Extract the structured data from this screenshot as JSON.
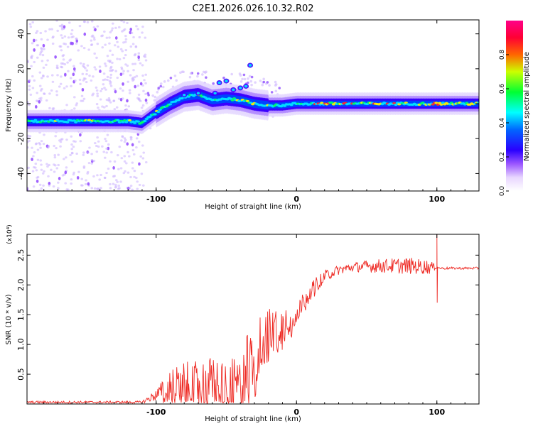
{
  "title": "C2E1.2026.026.10.32.R02",
  "chart_data": [
    {
      "type": "heatmap",
      "xlabel": "Height of straight line (km)",
      "ylabel": "Frequency (Hz)",
      "xlim": [
        -192,
        130
      ],
      "ylim": [
        -50,
        48
      ],
      "x_ticks": [
        -100,
        0,
        100
      ],
      "y_ticks": [
        -40,
        -20,
        0,
        20,
        40
      ],
      "grid": false,
      "colorbar": {
        "label": "Normalized spectral amplitude",
        "range": [
          0.0,
          1.0
        ],
        "ticks": [
          0.0,
          0.2,
          0.4,
          0.6,
          0.8
        ],
        "colors": [
          "#ffffff",
          "#cc99ff",
          "#6600ff",
          "#0000ff",
          "#00ffff",
          "#00ff00",
          "#ffff00",
          "#ff0000",
          "#ff0088"
        ]
      },
      "ridge": {
        "x": [
          -192,
          -150,
          -120,
          -110,
          -100,
          -90,
          -80,
          -70,
          -60,
          -50,
          -40,
          -30,
          -20,
          -10,
          0,
          10,
          20,
          50,
          90,
          100,
          130
        ],
        "freq": [
          -10,
          -10,
          -10,
          -11,
          -5,
          0,
          4,
          5,
          2,
          3,
          2,
          0,
          -1,
          -1,
          0,
          0,
          0,
          0,
          0,
          0,
          0
        ]
      }
    },
    {
      "type": "line",
      "xlabel": "Height of straight line (km)",
      "ylabel": "SNR (10 * v/v)",
      "y_multiplier": "(x10⁴)",
      "xlim": [
        -192,
        130
      ],
      "ylim": [
        0,
        2.85
      ],
      "x_ticks": [
        -100,
        0,
        100
      ],
      "y_ticks": [
        0.5,
        1.0,
        1.5,
        2.0,
        2.5
      ],
      "y_tick_labels": [
        "0.5",
        "1.0",
        "1.5",
        "2.0",
        "2.5"
      ],
      "grid": false,
      "color": "#ee2a24",
      "envelope": {
        "x": [
          -192,
          -110,
          -100,
          -90,
          -80,
          -70,
          -60,
          -50,
          -40,
          -35,
          -30,
          -20,
          -10,
          0,
          10,
          20,
          30,
          40,
          60,
          80,
          95,
          100,
          102,
          130
        ],
        "y": [
          0.03,
          0.03,
          0.15,
          0.3,
          0.35,
          0.35,
          0.38,
          0.35,
          0.3,
          0.6,
          0.9,
          1.2,
          1.35,
          1.55,
          1.9,
          2.15,
          2.25,
          2.3,
          2.32,
          2.32,
          2.3,
          2.3,
          2.28,
          2.28
        ],
        "noise": [
          0.02,
          0.02,
          0.1,
          0.28,
          0.35,
          0.4,
          0.42,
          0.45,
          0.45,
          0.6,
          0.55,
          0.45,
          0.35,
          0.2,
          0.15,
          0.1,
          0.08,
          0.08,
          0.12,
          0.14,
          0.12,
          0.02,
          0.02,
          0.02
        ]
      },
      "spike": {
        "x": 100,
        "y": [
          1.7,
          2.85
        ]
      }
    }
  ]
}
